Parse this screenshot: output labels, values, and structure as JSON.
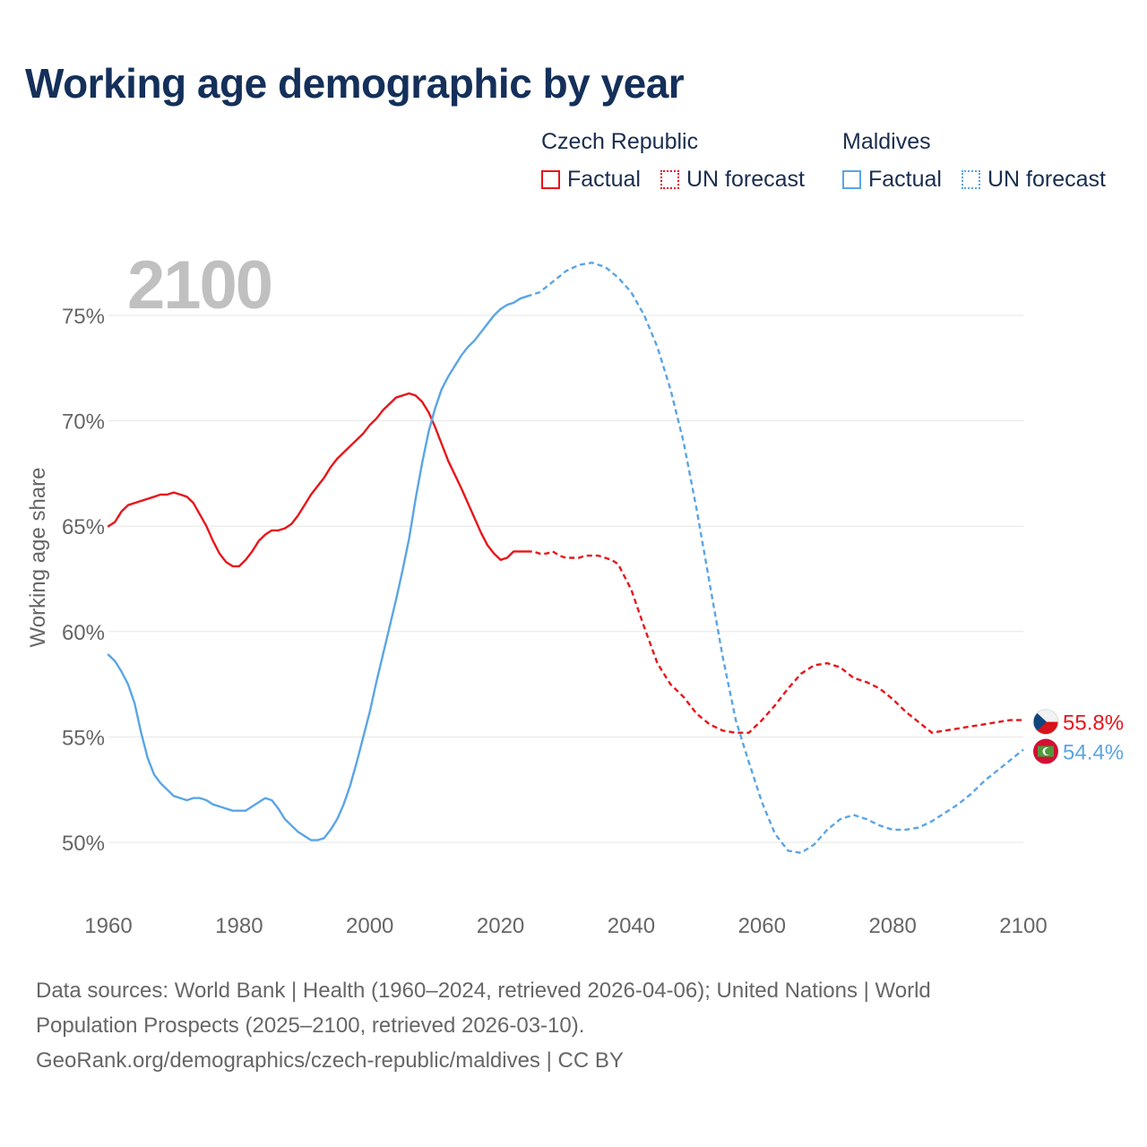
{
  "title": "Working age demographic by year",
  "legend": {
    "groups": [
      {
        "name": "Czech Republic",
        "color": "#e8151b",
        "factual_label": "Factual",
        "forecast_label": "UN forecast"
      },
      {
        "name": "Maldives",
        "color": "#5aa5e6",
        "factual_label": "Factual",
        "forecast_label": "UN forecast"
      }
    ]
  },
  "year_watermark": "2100",
  "chart_data": {
    "type": "line",
    "title": "Working age demographic by year",
    "xlabel": "",
    "ylabel": "Working age share",
    "xlim": [
      1960,
      2100
    ],
    "ylim": [
      48,
      78
    ],
    "x_ticks": [
      "1960",
      "1980",
      "2000",
      "2020",
      "2040",
      "2060",
      "2080",
      "2100"
    ],
    "y_ticks": [
      "50%",
      "55%",
      "60%",
      "65%",
      "70%",
      "75%"
    ],
    "grid": true,
    "series": [
      {
        "name": "Czech Republic",
        "color": "#e8151b",
        "end_label": "55.8%",
        "factual": {
          "x": [
            1960,
            1961,
            1962,
            1963,
            1965,
            1967,
            1968,
            1969,
            1970,
            1971,
            1972,
            1973,
            1975,
            1976,
            1977,
            1978,
            1979,
            1980,
            1981,
            1982,
            1983,
            1984,
            1985,
            1986,
            1987,
            1988,
            1989,
            1990,
            1991,
            1993,
            1994,
            1995,
            1997,
            1999,
            2000,
            2001,
            2002,
            2004,
            2006,
            2007,
            2008,
            2009,
            2010,
            2011,
            2012,
            2014,
            2016,
            2017,
            2018,
            2019,
            2020,
            2021,
            2022,
            2023,
            2024
          ],
          "y": [
            65.0,
            65.2,
            65.7,
            66.0,
            66.2,
            66.4,
            66.5,
            66.5,
            66.6,
            66.5,
            66.4,
            66.1,
            65.0,
            64.3,
            63.7,
            63.3,
            63.1,
            63.1,
            63.4,
            63.8,
            64.3,
            64.6,
            64.8,
            64.8,
            64.9,
            65.1,
            65.5,
            66.0,
            66.5,
            67.3,
            67.8,
            68.2,
            68.8,
            69.4,
            69.8,
            70.1,
            70.5,
            71.1,
            71.3,
            71.2,
            70.9,
            70.4,
            69.7,
            68.9,
            68.1,
            66.8,
            65.4,
            64.7,
            64.1,
            63.7,
            63.4,
            63.5,
            63.8,
            63.8,
            63.8
          ]
        },
        "forecast": {
          "x": [
            2024,
            2025,
            2026,
            2027,
            2028,
            2029,
            2030,
            2031,
            2032,
            2033,
            2034,
            2035,
            2036,
            2037,
            2038,
            2040,
            2042,
            2044,
            2046,
            2048,
            2050,
            2052,
            2054,
            2056,
            2058,
            2060,
            2062,
            2064,
            2066,
            2068,
            2070,
            2072,
            2074,
            2076,
            2078,
            2080,
            2082,
            2084,
            2086,
            2088,
            2090,
            2092,
            2094,
            2096,
            2098,
            2100
          ],
          "y": [
            63.8,
            63.8,
            63.7,
            63.7,
            63.8,
            63.6,
            63.5,
            63.5,
            63.5,
            63.6,
            63.6,
            63.6,
            63.5,
            63.4,
            63.2,
            62.0,
            60.2,
            58.5,
            57.5,
            56.9,
            56.1,
            55.6,
            55.3,
            55.2,
            55.2,
            55.8,
            56.5,
            57.3,
            58.0,
            58.4,
            58.5,
            58.3,
            57.8,
            57.6,
            57.3,
            56.8,
            56.2,
            55.7,
            55.2,
            55.3,
            55.4,
            55.5,
            55.6,
            55.7,
            55.8,
            55.8
          ]
        }
      },
      {
        "name": "Maldives",
        "color": "#5aa5e6",
        "end_label": "54.4%",
        "factual": {
          "x": [
            1960,
            1961,
            1962,
            1963,
            1964,
            1965,
            1966,
            1967,
            1968,
            1969,
            1970,
            1971,
            1972,
            1973,
            1974,
            1975,
            1976,
            1977,
            1978,
            1979,
            1980,
            1981,
            1982,
            1983,
            1984,
            1985,
            1986,
            1987,
            1988,
            1989,
            1990,
            1991,
            1992,
            1993,
            1994,
            1995,
            1996,
            1997,
            1998,
            1999,
            2000,
            2001,
            2002,
            2003,
            2004,
            2005,
            2006,
            2007,
            2008,
            2009,
            2010,
            2011,
            2012,
            2013,
            2014,
            2015,
            2016,
            2017,
            2018,
            2019,
            2020,
            2021,
            2022,
            2023,
            2024
          ],
          "y": [
            58.9,
            58.6,
            58.1,
            57.5,
            56.6,
            55.2,
            54.0,
            53.2,
            52.8,
            52.5,
            52.2,
            52.1,
            52.0,
            52.1,
            52.1,
            52.0,
            51.8,
            51.7,
            51.6,
            51.5,
            51.5,
            51.5,
            51.7,
            51.9,
            52.1,
            52.0,
            51.6,
            51.1,
            50.8,
            50.5,
            50.3,
            50.1,
            50.1,
            50.2,
            50.6,
            51.1,
            51.8,
            52.7,
            53.8,
            55.0,
            56.2,
            57.6,
            58.9,
            60.2,
            61.5,
            62.9,
            64.4,
            66.3,
            68.0,
            69.5,
            70.6,
            71.5,
            72.1,
            72.6,
            73.1,
            73.5,
            73.8,
            74.2,
            74.6,
            75.0,
            75.3,
            75.5,
            75.6,
            75.8,
            75.9
          ]
        },
        "forecast": {
          "x": [
            2024,
            2026,
            2028,
            2030,
            2032,
            2034,
            2036,
            2038,
            2040,
            2042,
            2044,
            2046,
            2048,
            2050,
            2052,
            2054,
            2056,
            2058,
            2060,
            2062,
            2064,
            2066,
            2068,
            2070,
            2072,
            2074,
            2076,
            2078,
            2080,
            2082,
            2084,
            2086,
            2088,
            2090,
            2092,
            2094,
            2096,
            2098,
            2100
          ],
          "y": [
            75.9,
            76.1,
            76.6,
            77.1,
            77.4,
            77.5,
            77.3,
            76.8,
            76.1,
            75.0,
            73.5,
            71.5,
            69.0,
            65.8,
            62.3,
            58.8,
            55.8,
            53.8,
            51.9,
            50.4,
            49.6,
            49.5,
            49.9,
            50.6,
            51.1,
            51.3,
            51.1,
            50.8,
            50.6,
            50.6,
            50.7,
            51.0,
            51.4,
            51.8,
            52.3,
            52.9,
            53.4,
            53.9,
            54.4
          ]
        }
      }
    ]
  },
  "sources": {
    "line1": "Data sources: World Bank | Health (1960–2024, retrieved 2026-04-06); United Nations | World",
    "line2": "Population Prospects (2025–2100, retrieved 2026-03-10).",
    "line3": "GeoRank.org/demographics/czech-republic/maldives | CC BY"
  }
}
